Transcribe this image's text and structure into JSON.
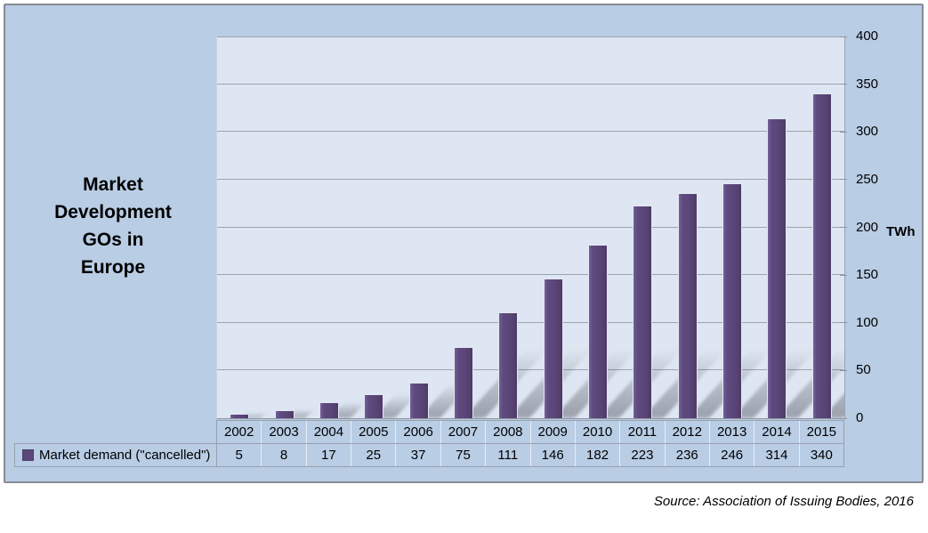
{
  "page": {
    "source_note": "Source: Association of Issuing Bodies, 2016"
  },
  "chart": {
    "title": "Market\nDevelopment\nGOs in\nEurope",
    "y_unit_label": "TWh"
  },
  "chart_data": {
    "type": "bar",
    "title": "Market Development GOs in Europe",
    "categories": [
      "2002",
      "2003",
      "2004",
      "2005",
      "2006",
      "2007",
      "2008",
      "2009",
      "2010",
      "2011",
      "2012",
      "2013",
      "2014",
      "2015"
    ],
    "series": [
      {
        "name": "Market demand (\"cancelled\")",
        "values": [
          5,
          8,
          17,
          25,
          37,
          75,
          111,
          146,
          182,
          223,
          236,
          246,
          314,
          340
        ],
        "color": "#5b4779"
      }
    ],
    "xlabel": "",
    "ylabel": "TWh",
    "ylim": [
      0,
      400
    ],
    "ytick_interval": 50,
    "grid": true,
    "legend_position": "bottom table row with data values",
    "source": "Source: Association of Issuing Bodies, 2016"
  },
  "colors": {
    "chart_background": "#b9cde5",
    "plot_background": "#dde6f2",
    "bar": "#5b4779",
    "gridline": "#9ba3ae",
    "text": "#000000"
  }
}
